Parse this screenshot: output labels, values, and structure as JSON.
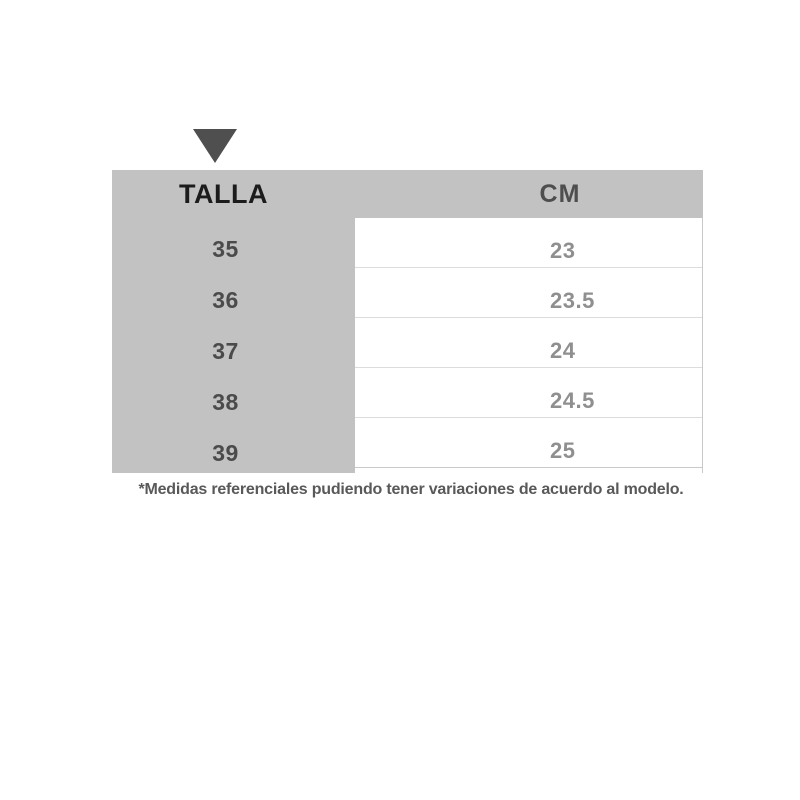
{
  "chart_data": {
    "type": "table",
    "title": "",
    "columns": [
      "TALLA",
      "CM"
    ],
    "rows": [
      [
        "35",
        "23"
      ],
      [
        "36",
        "23.5"
      ],
      [
        "37",
        "24"
      ],
      [
        "38",
        "24.5"
      ],
      [
        "39",
        "25"
      ]
    ],
    "layout_hints": {
      "header_background": "gray",
      "left_column_background": "gray",
      "value_rows_background": "white",
      "pointer": "triangle pointing down above TALLA column"
    }
  },
  "footnote": "*Medidas referenciales pudiendo tener variaciones de acuerdo al modelo.",
  "icons": {
    "pointer": "triangle-down"
  },
  "colors": {
    "background": "#ffffff",
    "table_gray": "#c2c2c2",
    "pointer": "#4f4f4f",
    "talla_header_text": "#1c1c1c",
    "cm_header_text": "#4e4e4e",
    "size_text": "#4b4b4b",
    "value_text": "#8f8f8f",
    "row_border": "#dcdcdc",
    "footnote_text": "#595959"
  }
}
